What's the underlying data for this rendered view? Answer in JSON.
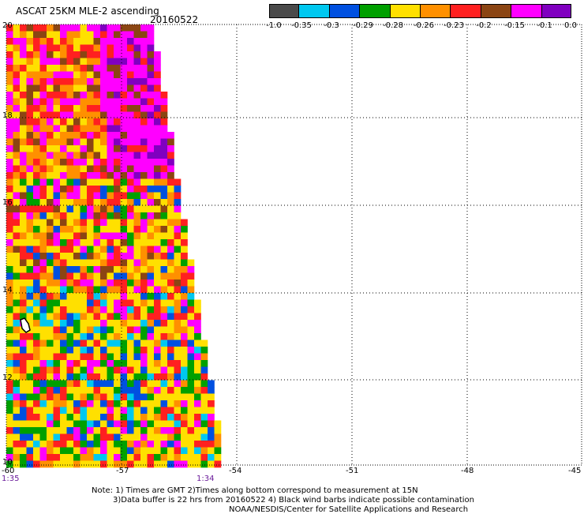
{
  "header": {
    "title": "ASCAT 25KM MLE-2 ascending",
    "date": "20160522"
  },
  "colorbar": {
    "colors": [
      "#4a4a4a",
      "#00c8f0",
      "#0050e0",
      "#00a000",
      "#ffe000",
      "#ff9000",
      "#ff2020",
      "#8b4513",
      "#ff00ff",
      "#8000c0"
    ],
    "tick_labels": [
      "-1.0",
      "-0.35",
      "-0.3",
      "-0.29",
      "-0.28",
      "-0.26",
      "-0.23",
      "-0.2",
      "-0.15",
      "-0.1",
      "0.0"
    ]
  },
  "axes": {
    "lat_labels": [
      "20",
      "18",
      "16",
      "14",
      "12",
      "10"
    ],
    "lon_labels": [
      "-60",
      "-57",
      "-54",
      "-51",
      "-48",
      "-45"
    ]
  },
  "times": {
    "left": "1:35",
    "right": "1:34"
  },
  "notes": {
    "line1": "Note: 1) Times are GMT 2)Times along bottom correspond to measurement at 15N",
    "line2": "3)Data buffer is 22 hrs from 20160522 4) Black wind barbs indicate possible contamination",
    "line3": "NOAA/NESDIS/Center for Satellite Applications and Research"
  }
}
